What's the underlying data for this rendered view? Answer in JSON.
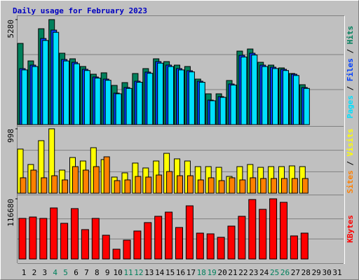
{
  "chart_data": [
    {
      "type": "bar",
      "title": "Daily usage for February 2023",
      "ylim": [
        0,
        5280
      ],
      "yticks": [
        5280
      ],
      "series": [
        {
          "name": "Hits",
          "color": "#00805c",
          "values": [
            4083,
            3203,
            4822,
            5280,
            3590,
            3309,
            2922,
            2534,
            2605,
            1971,
            2112,
            2570,
            2816,
            3309,
            3168,
            2992,
            2922,
            2288,
            1549,
            1549,
            2218,
            3696,
            3802,
            3133,
            2992,
            2851,
            2570,
            2006,
            null,
            null,
            null
          ]
        },
        {
          "name": "Files",
          "color": "#0040ff",
          "values": [
            2816,
            2992,
            4330,
            4752,
            3274,
            3133,
            2781,
            2394,
            2288,
            1584,
            1866,
            2182,
            2640,
            3168,
            2992,
            2816,
            2710,
            2182,
            1232,
            1408,
            2042,
            3485,
            3590,
            2992,
            2886,
            2781,
            2534,
            1866,
            null,
            null,
            null
          ]
        },
        {
          "name": "Pages",
          "color": "#00e0ff",
          "values": [
            2750,
            2920,
            4230,
            4640,
            3200,
            3060,
            2720,
            2340,
            2230,
            1550,
            1820,
            2130,
            2580,
            3090,
            2920,
            2750,
            2650,
            2130,
            1200,
            1370,
            1990,
            3400,
            3500,
            2920,
            2820,
            2720,
            2470,
            1820,
            null,
            null,
            null
          ]
        }
      ]
    },
    {
      "type": "bar",
      "ylim": [
        0,
        998
      ],
      "yticks": [
        998
      ],
      "series": [
        {
          "name": "Visits",
          "color": "#ffff00",
          "values": [
            684,
            445,
            814,
            998,
            358,
            553,
            499,
            705,
            521,
            250,
            315,
            467,
            391,
            499,
            618,
            532,
            499,
            412,
            412,
            401,
            260,
            412,
            445,
            401,
            412,
            412,
            423,
            412,
            null,
            null,
            null
          ]
        },
        {
          "name": "Sites",
          "color": "#ff8000",
          "values": [
            239,
            358,
            239,
            271,
            206,
            412,
            358,
            412,
            564,
            195,
            206,
            260,
            250,
            282,
            336,
            271,
            271,
            206,
            239,
            195,
            239,
            206,
            239,
            228,
            228,
            228,
            228,
            228,
            null,
            null,
            null
          ]
        }
      ]
    },
    {
      "type": "bar",
      "ylim": [
        0,
        116680
      ],
      "yticks": [
        116680
      ],
      "categories": [
        "1",
        "2",
        "3",
        "4",
        "5",
        "6",
        "7",
        "8",
        "9",
        "10",
        "11",
        "12",
        "13",
        "14",
        "15",
        "16",
        "17",
        "18",
        "19",
        "20",
        "21",
        "22",
        "23",
        "24",
        "25",
        "26",
        "27",
        "28",
        "29",
        "30",
        "31"
      ],
      "category_colors": [
        "#000000",
        "#000000",
        "#000000",
        "#00805c",
        "#00805c",
        "#000000",
        "#000000",
        "#000000",
        "#000000",
        "#000000",
        "#00805c",
        "#00805c",
        "#000000",
        "#000000",
        "#000000",
        "#000000",
        "#000000",
        "#00805c",
        "#00805c",
        "#000000",
        "#000000",
        "#000000",
        "#000000",
        "#000000",
        "#00805c",
        "#00805c",
        "#000000",
        "#000000",
        "#000000",
        "#000000",
        "#000000"
      ],
      "series": [
        {
          "name": "KBytes",
          "color": "#ff0000",
          "values": [
            78700,
            81400,
            78700,
            99000,
            69200,
            97700,
            57000,
            78700,
            46100,
            19000,
            36600,
            54300,
            70600,
            82800,
            90900,
            61100,
            103100,
            50200,
            48800,
            42100,
            63800,
            82800,
            115300,
            96300,
            116680,
            109900,
            44800,
            50200,
            null,
            null,
            null
          ]
        }
      ]
    }
  ]
}
